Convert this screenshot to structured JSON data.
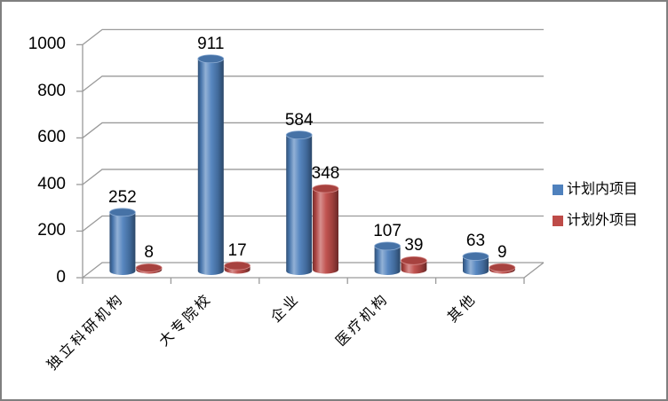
{
  "chart_data": {
    "type": "bar",
    "subtype": "cylinder-3d",
    "categories": [
      "独立科研机构",
      "大专院校",
      "企业",
      "医疗机构",
      "其他"
    ],
    "series": [
      {
        "name": "计划内项目",
        "color": "#4F81BD",
        "values": [
          252,
          911,
          584,
          107,
          63
        ]
      },
      {
        "name": "计划外项目",
        "color": "#BE4B48",
        "values": [
          8,
          17,
          348,
          39,
          9
        ]
      }
    ],
    "title": "",
    "xlabel": "",
    "ylabel": "",
    "ylim": [
      0,
      1000
    ],
    "yticks": [
      0,
      200,
      400,
      600,
      800,
      1000
    ],
    "grid": true,
    "legend_position": "right",
    "data_labels": true
  },
  "frame": {
    "border_color": "#7f7f7f",
    "background": "#ffffff",
    "grid_color": "#9a9a9a",
    "label_color": "#000000"
  }
}
